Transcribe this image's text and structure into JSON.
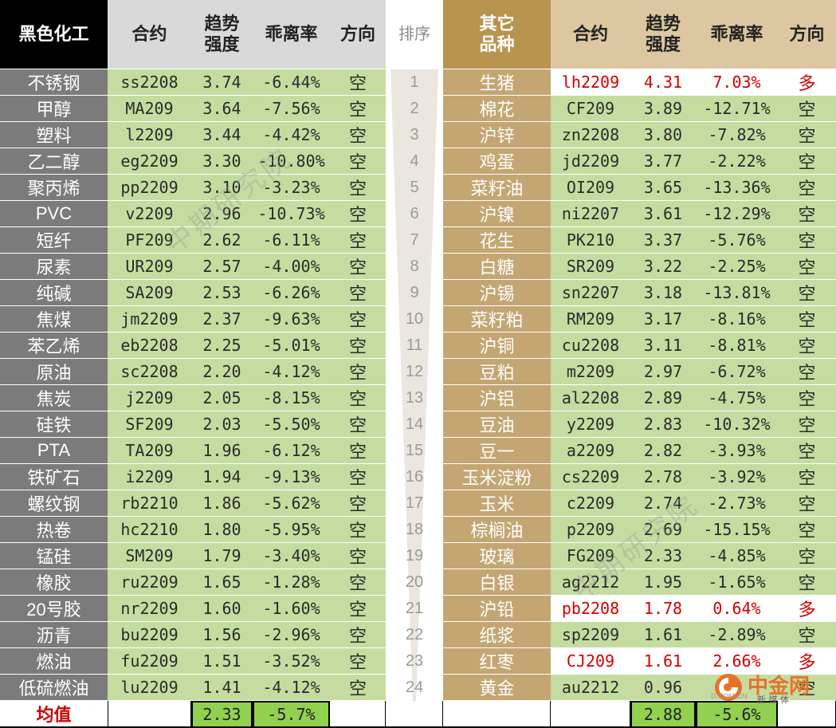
{
  "headers": {
    "left_category": "黑色化工",
    "contract": "合约",
    "strength_line1": "趋势",
    "strength_line2": "强度",
    "deviation": "乖离率",
    "direction": "方向",
    "rank": "排序",
    "right_category_line1": "其它",
    "right_category_line2": "品种"
  },
  "left_rows": [
    {
      "name": "不锈钢",
      "contract": "ss2208",
      "strength": "3.74",
      "deviation": "-6.44%",
      "direction": "空"
    },
    {
      "name": "甲醇",
      "contract": "MA209",
      "strength": "3.64",
      "deviation": "-7.56%",
      "direction": "空"
    },
    {
      "name": "塑料",
      "contract": "l2209",
      "strength": "3.44",
      "deviation": "-4.42%",
      "direction": "空"
    },
    {
      "name": "乙二醇",
      "contract": "eg2209",
      "strength": "3.30",
      "deviation": "-10.80%",
      "direction": "空"
    },
    {
      "name": "聚丙烯",
      "contract": "pp2209",
      "strength": "3.10",
      "deviation": "-3.23%",
      "direction": "空"
    },
    {
      "name": "PVC",
      "contract": "v2209",
      "strength": "2.96",
      "deviation": "-10.73%",
      "direction": "空"
    },
    {
      "name": "短纤",
      "contract": "PF209",
      "strength": "2.62",
      "deviation": "-6.11%",
      "direction": "空"
    },
    {
      "name": "尿素",
      "contract": "UR209",
      "strength": "2.57",
      "deviation": "-4.00%",
      "direction": "空"
    },
    {
      "name": "纯碱",
      "contract": "SA209",
      "strength": "2.53",
      "deviation": "-6.26%",
      "direction": "空"
    },
    {
      "name": "焦煤",
      "contract": "jm2209",
      "strength": "2.37",
      "deviation": "-9.63%",
      "direction": "空"
    },
    {
      "name": "苯乙烯",
      "contract": "eb2208",
      "strength": "2.25",
      "deviation": "-5.01%",
      "direction": "空"
    },
    {
      "name": "原油",
      "contract": "sc2208",
      "strength": "2.20",
      "deviation": "-4.12%",
      "direction": "空"
    },
    {
      "name": "焦炭",
      "contract": "j2209",
      "strength": "2.05",
      "deviation": "-8.15%",
      "direction": "空"
    },
    {
      "name": "硅铁",
      "contract": "SF209",
      "strength": "2.03",
      "deviation": "-5.50%",
      "direction": "空"
    },
    {
      "name": "PTA",
      "contract": "TA209",
      "strength": "1.96",
      "deviation": "-6.12%",
      "direction": "空"
    },
    {
      "name": "铁矿石",
      "contract": "i2209",
      "strength": "1.94",
      "deviation": "-9.13%",
      "direction": "空"
    },
    {
      "name": "螺纹钢",
      "contract": "rb2210",
      "strength": "1.86",
      "deviation": "-5.62%",
      "direction": "空"
    },
    {
      "name": "热卷",
      "contract": "hc2210",
      "strength": "1.80",
      "deviation": "-5.95%",
      "direction": "空"
    },
    {
      "name": "锰硅",
      "contract": "SM209",
      "strength": "1.79",
      "deviation": "-3.40%",
      "direction": "空"
    },
    {
      "name": "橡胶",
      "contract": "ru2209",
      "strength": "1.65",
      "deviation": "-1.28%",
      "direction": "空"
    },
    {
      "name": "20号胶",
      "contract": "nr2209",
      "strength": "1.60",
      "deviation": "-1.60%",
      "direction": "空"
    },
    {
      "name": "沥青",
      "contract": "bu2209",
      "strength": "1.56",
      "deviation": "-2.96%",
      "direction": "空"
    },
    {
      "name": "燃油",
      "contract": "fu2209",
      "strength": "1.51",
      "deviation": "-3.52%",
      "direction": "空"
    },
    {
      "name": "低硫燃油",
      "contract": "lu2209",
      "strength": "1.41",
      "deviation": "-4.12%",
      "direction": "空"
    }
  ],
  "ranks": [
    "1",
    "2",
    "3",
    "4",
    "5",
    "6",
    "7",
    "8",
    "9",
    "10",
    "11",
    "12",
    "13",
    "14",
    "15",
    "16",
    "17",
    "18",
    "19",
    "20",
    "21",
    "22",
    "23",
    "24"
  ],
  "right_rows": [
    {
      "name": "生猪",
      "contract": "lh2209",
      "strength": "4.31",
      "deviation": "7.03%",
      "direction": "多",
      "long": true
    },
    {
      "name": "棉花",
      "contract": "CF209",
      "strength": "3.89",
      "deviation": "-12.71%",
      "direction": "空",
      "long": false
    },
    {
      "name": "沪锌",
      "contract": "zn2208",
      "strength": "3.80",
      "deviation": "-7.82%",
      "direction": "空",
      "long": false
    },
    {
      "name": "鸡蛋",
      "contract": "jd2209",
      "strength": "3.77",
      "deviation": "-2.22%",
      "direction": "空",
      "long": false
    },
    {
      "name": "菜籽油",
      "contract": "OI209",
      "strength": "3.65",
      "deviation": "-13.36%",
      "direction": "空",
      "long": false
    },
    {
      "name": "沪镍",
      "contract": "ni2207",
      "strength": "3.61",
      "deviation": "-12.29%",
      "direction": "空",
      "long": false
    },
    {
      "name": "花生",
      "contract": "PK210",
      "strength": "3.37",
      "deviation": "-5.76%",
      "direction": "空",
      "long": false
    },
    {
      "name": "白糖",
      "contract": "SR209",
      "strength": "3.22",
      "deviation": "-2.25%",
      "direction": "空",
      "long": false
    },
    {
      "name": "沪锡",
      "contract": "sn2207",
      "strength": "3.18",
      "deviation": "-13.81%",
      "direction": "空",
      "long": false
    },
    {
      "name": "菜籽粕",
      "contract": "RM209",
      "strength": "3.17",
      "deviation": "-8.16%",
      "direction": "空",
      "long": false
    },
    {
      "name": "沪铜",
      "contract": "cu2208",
      "strength": "3.11",
      "deviation": "-8.81%",
      "direction": "空",
      "long": false
    },
    {
      "name": "豆粕",
      "contract": "m2209",
      "strength": "2.97",
      "deviation": "-6.72%",
      "direction": "空",
      "long": false
    },
    {
      "name": "沪铝",
      "contract": "al2208",
      "strength": "2.89",
      "deviation": "-4.75%",
      "direction": "空",
      "long": false
    },
    {
      "name": "豆油",
      "contract": "y2209",
      "strength": "2.83",
      "deviation": "-10.32%",
      "direction": "空",
      "long": false
    },
    {
      "name": "豆一",
      "contract": "a2209",
      "strength": "2.82",
      "deviation": "-3.93%",
      "direction": "空",
      "long": false
    },
    {
      "name": "玉米淀粉",
      "contract": "cs2209",
      "strength": "2.78",
      "deviation": "-3.92%",
      "direction": "空",
      "long": false
    },
    {
      "name": "玉米",
      "contract": "c2209",
      "strength": "2.74",
      "deviation": "-2.73%",
      "direction": "空",
      "long": false
    },
    {
      "name": "棕榈油",
      "contract": "p2209",
      "strength": "2.69",
      "deviation": "-15.15%",
      "direction": "空",
      "long": false
    },
    {
      "name": "玻璃",
      "contract": "FG209",
      "strength": "2.33",
      "deviation": "-4.85%",
      "direction": "空",
      "long": false
    },
    {
      "name": "白银",
      "contract": "ag2212",
      "strength": "1.95",
      "deviation": "-1.65%",
      "direction": "空",
      "long": false
    },
    {
      "name": "沪铅",
      "contract": "pb2208",
      "strength": "1.78",
      "deviation": "0.64%",
      "direction": "多",
      "long": true
    },
    {
      "name": "纸浆",
      "contract": "sp2209",
      "strength": "1.61",
      "deviation": "-2.89%",
      "direction": "空",
      "long": false
    },
    {
      "name": "红枣",
      "contract": "CJ209",
      "strength": "1.61",
      "deviation": "2.66%",
      "direction": "多",
      "long": true
    },
    {
      "name": "黄金",
      "contract": "au2212",
      "strength": "0.96",
      "deviation": "",
      "direction": "空",
      "long": false
    }
  ],
  "average": {
    "label": "均值",
    "left_strength": "2.33",
    "left_deviation": "-5.7%",
    "right_strength": "2.88",
    "right_deviation": "-5.6%"
  },
  "watermark_text": "中期研究院",
  "logo": {
    "text": "中金网",
    "sub": "新 媒 体",
    "url_fragment": "D.COM.CN"
  },
  "colors": {
    "green_cell": "#c5dca0",
    "long_red": "#d00000",
    "avg_green": "#92d050"
  }
}
